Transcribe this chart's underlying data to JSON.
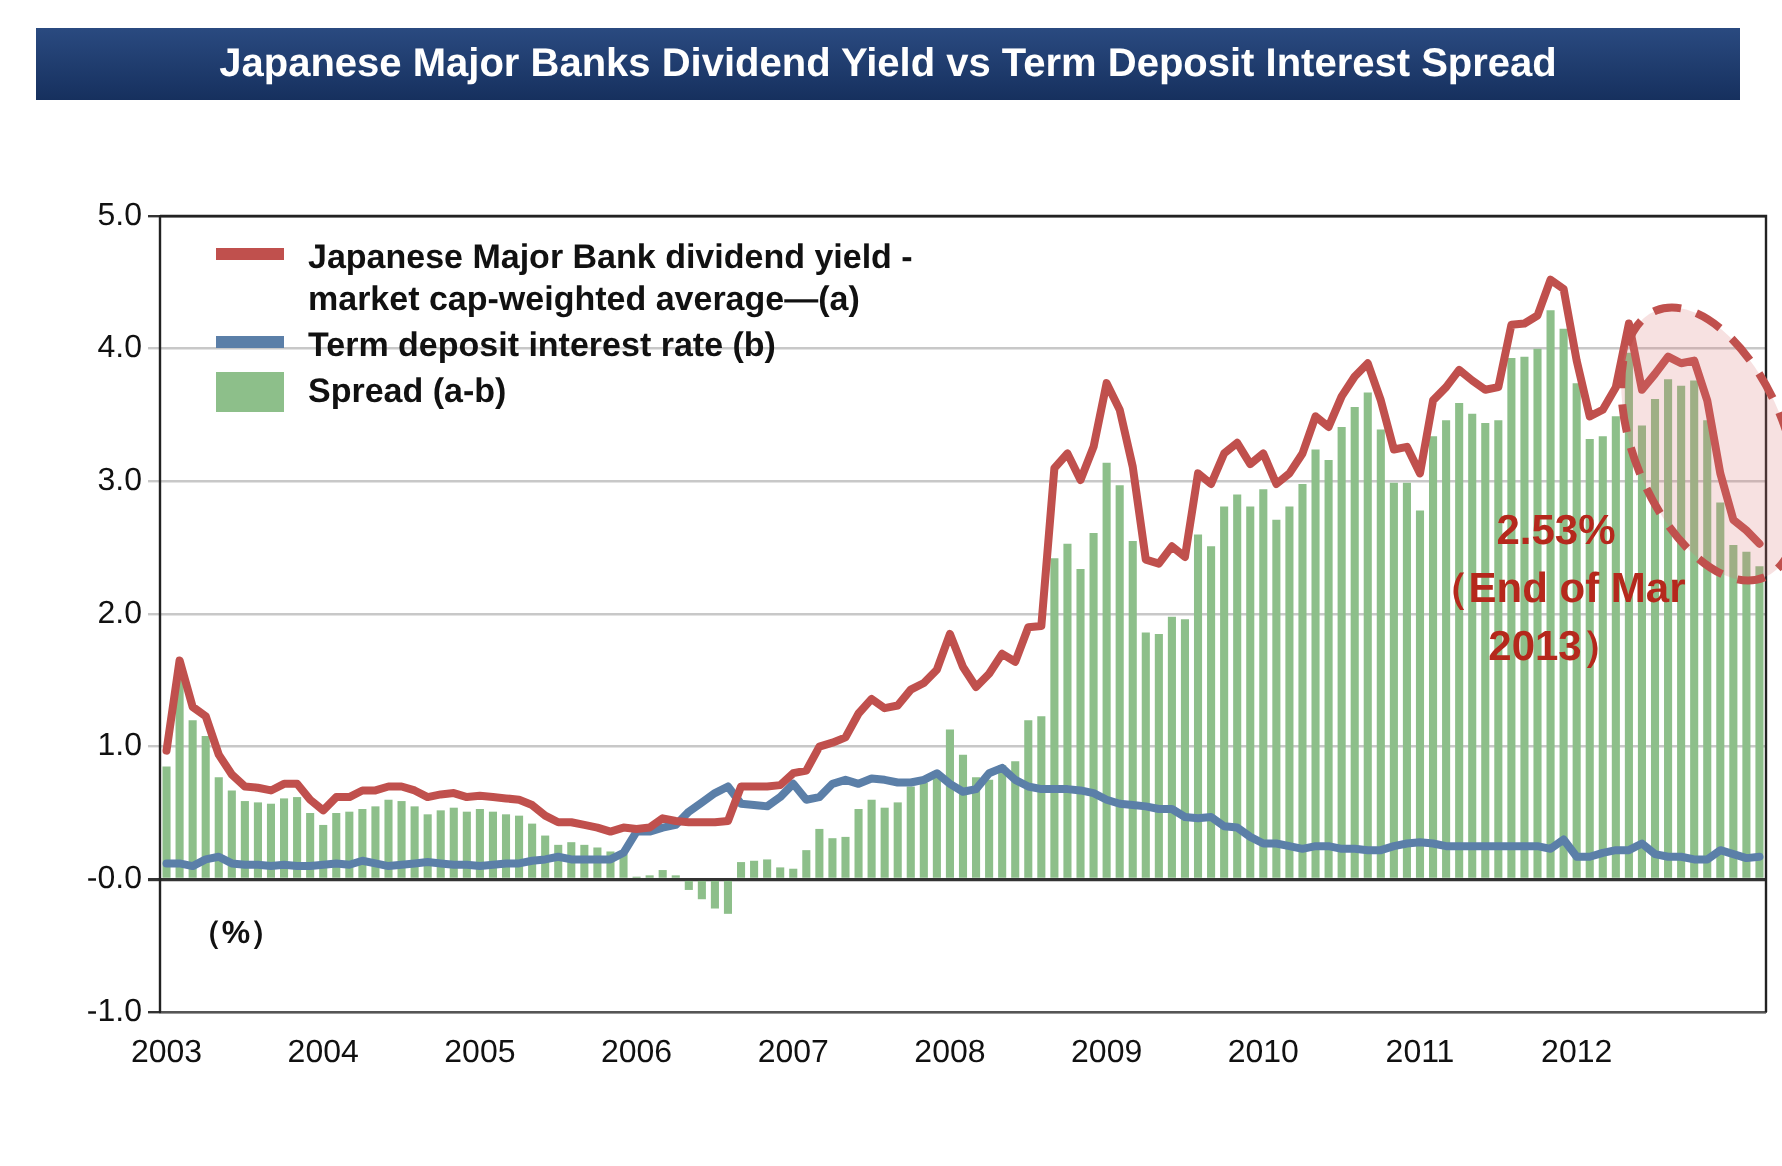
{
  "chart_data": {
    "type": "bar",
    "title": "Japanese Major Banks Dividend Yield vs Term Deposit Interest Spread",
    "categories": [
      "2003",
      null,
      null,
      null,
      null,
      null,
      null,
      null,
      null,
      null,
      null,
      null,
      "2004",
      null,
      null,
      null,
      null,
      null,
      null,
      null,
      null,
      null,
      null,
      null,
      "2005",
      null,
      null,
      null,
      null,
      null,
      null,
      null,
      null,
      null,
      null,
      null,
      "2006",
      null,
      null,
      null,
      null,
      null,
      null,
      null,
      null,
      null,
      null,
      null,
      "2007",
      null,
      null,
      null,
      null,
      null,
      null,
      null,
      null,
      null,
      null,
      null,
      "2008",
      null,
      null,
      null,
      null,
      null,
      null,
      null,
      null,
      null,
      null,
      null,
      "2009",
      null,
      null,
      null,
      null,
      null,
      null,
      null,
      null,
      null,
      null,
      null,
      "2010",
      null,
      null,
      null,
      null,
      null,
      null,
      null,
      null,
      null,
      null,
      null,
      "2011",
      null,
      null,
      null,
      null,
      null,
      null,
      null,
      null,
      null,
      null,
      null,
      "2012",
      null,
      null,
      null,
      null,
      null,
      null,
      null,
      null,
      null,
      null,
      null,
      null,
      null,
      null
    ],
    "series": [
      {
        "name": "Japanese Major Bank dividend yield - market cap-weighted average—(a)",
        "type": "line",
        "color": "#c0504d",
        "values": [
          0.97,
          1.65,
          1.3,
          1.23,
          0.94,
          0.79,
          0.7,
          0.69,
          0.67,
          0.72,
          0.72,
          0.6,
          0.52,
          0.62,
          0.62,
          0.67,
          0.67,
          0.7,
          0.7,
          0.67,
          0.62,
          0.64,
          0.65,
          0.62,
          0.63,
          0.62,
          0.61,
          0.6,
          0.56,
          0.48,
          0.43,
          0.43,
          0.41,
          0.39,
          0.36,
          0.39,
          0.38,
          0.39,
          0.46,
          0.44,
          0.43,
          0.43,
          0.43,
          0.44,
          0.7,
          0.7,
          0.7,
          0.71,
          0.8,
          0.82,
          1.0,
          1.03,
          1.07,
          1.25,
          1.36,
          1.29,
          1.31,
          1.43,
          1.48,
          1.58,
          1.85,
          1.6,
          1.45,
          1.55,
          1.7,
          1.64,
          1.9,
          1.91,
          3.1,
          3.21,
          3.01,
          3.26,
          3.74,
          3.54,
          3.11,
          2.41,
          2.38,
          2.51,
          2.43,
          3.06,
          2.98,
          3.21,
          3.29,
          3.13,
          3.21,
          2.98,
          3.06,
          3.21,
          3.49,
          3.41,
          3.64,
          3.79,
          3.89,
          3.61,
          3.24,
          3.26,
          3.06,
          3.61,
          3.71,
          3.84,
          3.76,
          3.69,
          3.71,
          4.18,
          4.19,
          4.25,
          4.52,
          4.45,
          3.91,
          3.49,
          3.54,
          3.71,
          4.19,
          3.69,
          3.81,
          3.94,
          3.89,
          3.91,
          3.61,
          3.06,
          2.71,
          2.63,
          2.53
        ]
      },
      {
        "name": "Term deposit interest rate (b)",
        "type": "line",
        "color": "#5b7fa8",
        "values": [
          0.12,
          0.12,
          0.1,
          0.15,
          0.17,
          0.12,
          0.11,
          0.11,
          0.1,
          0.11,
          0.1,
          0.1,
          0.11,
          0.12,
          0.11,
          0.14,
          0.12,
          0.1,
          0.11,
          0.12,
          0.13,
          0.12,
          0.11,
          0.11,
          0.1,
          0.11,
          0.12,
          0.12,
          0.14,
          0.15,
          0.17,
          0.15,
          0.15,
          0.15,
          0.15,
          0.2,
          0.36,
          0.36,
          0.39,
          0.41,
          0.51,
          0.58,
          0.65,
          0.7,
          0.57,
          0.56,
          0.55,
          0.62,
          0.72,
          0.6,
          0.62,
          0.72,
          0.75,
          0.72,
          0.76,
          0.75,
          0.73,
          0.73,
          0.75,
          0.8,
          0.72,
          0.66,
          0.68,
          0.8,
          0.84,
          0.75,
          0.7,
          0.68,
          0.68,
          0.68,
          0.67,
          0.65,
          0.6,
          0.57,
          0.56,
          0.55,
          0.53,
          0.53,
          0.47,
          0.46,
          0.47,
          0.4,
          0.39,
          0.32,
          0.27,
          0.27,
          0.25,
          0.23,
          0.25,
          0.25,
          0.23,
          0.23,
          0.22,
          0.22,
          0.25,
          0.27,
          0.28,
          0.27,
          0.25,
          0.25,
          0.25,
          0.25,
          0.25,
          0.25,
          0.25,
          0.25,
          0.23,
          0.3,
          0.17,
          0.17,
          0.2,
          0.22,
          0.22,
          0.27,
          0.19,
          0.17,
          0.17,
          0.15,
          0.15,
          0.22,
          0.19,
          0.16,
          0.17
        ]
      },
      {
        "name": "Spread (a-b)",
        "color": "#8dbf8a",
        "values": [
          0.85,
          1.53,
          1.2,
          1.08,
          0.77,
          0.67,
          0.59,
          0.58,
          0.57,
          0.61,
          0.62,
          0.5,
          0.41,
          0.5,
          0.51,
          0.53,
          0.55,
          0.6,
          0.59,
          0.55,
          0.49,
          0.52,
          0.54,
          0.51,
          0.53,
          0.51,
          0.49,
          0.48,
          0.42,
          0.33,
          0.26,
          0.28,
          0.26,
          0.24,
          0.21,
          0.19,
          0.02,
          0.03,
          0.07,
          0.03,
          -0.08,
          -0.15,
          -0.22,
          -0.26,
          0.13,
          0.14,
          0.15,
          0.09,
          0.08,
          0.22,
          0.38,
          0.31,
          0.32,
          0.53,
          0.6,
          0.54,
          0.58,
          0.7,
          0.73,
          0.78,
          1.13,
          0.94,
          0.77,
          0.75,
          0.86,
          0.89,
          1.2,
          1.23,
          2.42,
          2.53,
          2.34,
          2.61,
          3.14,
          2.97,
          2.55,
          1.86,
          1.85,
          1.98,
          1.96,
          2.6,
          2.51,
          2.81,
          2.9,
          2.81,
          2.94,
          2.71,
          2.81,
          2.98,
          3.24,
          3.16,
          3.41,
          3.56,
          3.67,
          3.39,
          2.99,
          2.99,
          2.78,
          3.34,
          3.46,
          3.59,
          3.51,
          3.44,
          3.46,
          3.93,
          3.94,
          4.0,
          4.29,
          4.15,
          3.74,
          3.32,
          3.34,
          3.49,
          3.97,
          3.42,
          3.62,
          3.77,
          3.72,
          3.76,
          3.46,
          2.84,
          2.52,
          2.47,
          2.36
        ]
      }
    ],
    "ylim": [
      -1,
      5
    ],
    "yticks": [
      {
        "value": -1,
        "label": "-1.0"
      },
      {
        "value": 0,
        "label": "-0.0"
      },
      {
        "value": 1,
        "label": "1.0"
      },
      {
        "value": 2,
        "label": "2.0"
      },
      {
        "value": 3,
        "label": "3.0"
      },
      {
        "value": 4,
        "label": "4.0"
      },
      {
        "value": 5,
        "label": "5.0"
      }
    ],
    "grid": "y",
    "legend": "top left",
    "marker": "none",
    "line_style": "solid",
    "annotations": [
      "（%）",
      "2.53%\n（End of Mar\n2013）"
    ]
  }
}
